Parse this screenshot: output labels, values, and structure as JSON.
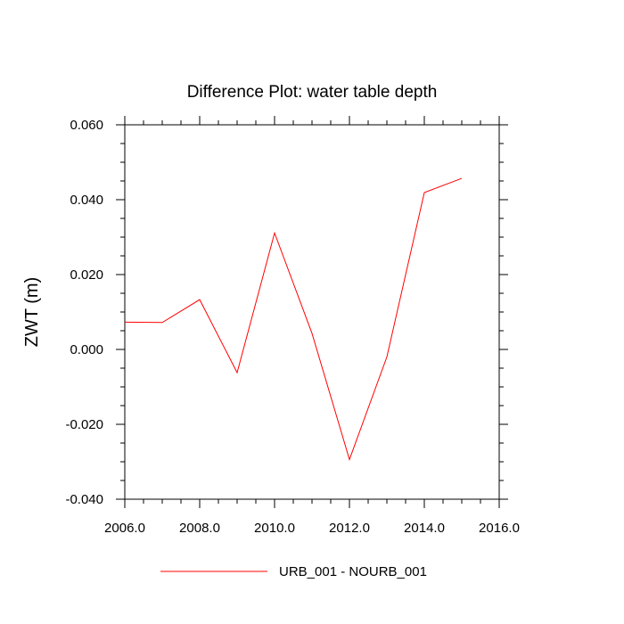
{
  "chart_data": {
    "type": "line",
    "title": "Difference Plot: water table depth",
    "xlabel": "",
    "ylabel": "ZWT  (m)",
    "xlim": [
      2006,
      2016
    ],
    "ylim": [
      -0.04,
      0.06
    ],
    "x_ticks": [
      2006,
      2008,
      2010,
      2012,
      2014,
      2016
    ],
    "x_tick_labels": [
      "2006.0",
      "2008.0",
      "2010.0",
      "2012.0",
      "2014.0",
      "2016.0"
    ],
    "y_ticks": [
      -0.04,
      -0.02,
      0.0,
      0.02,
      0.04,
      0.06
    ],
    "y_tick_labels": [
      "-0.040",
      "-0.020",
      "0.000",
      "0.020",
      "0.040",
      "0.060"
    ],
    "grid": false,
    "legend_position": "bottom-center",
    "series": [
      {
        "name": "URB_001 - NOURB_001",
        "color": "#ff0000",
        "x": [
          2006,
          2007,
          2008,
          2009,
          2010,
          2011,
          2012,
          2013,
          2014,
          2015
        ],
        "values": [
          0.0073,
          0.0072,
          0.0133,
          -0.0062,
          0.0311,
          0.0043,
          -0.0294,
          -0.002,
          0.0419,
          0.0457
        ]
      }
    ]
  }
}
